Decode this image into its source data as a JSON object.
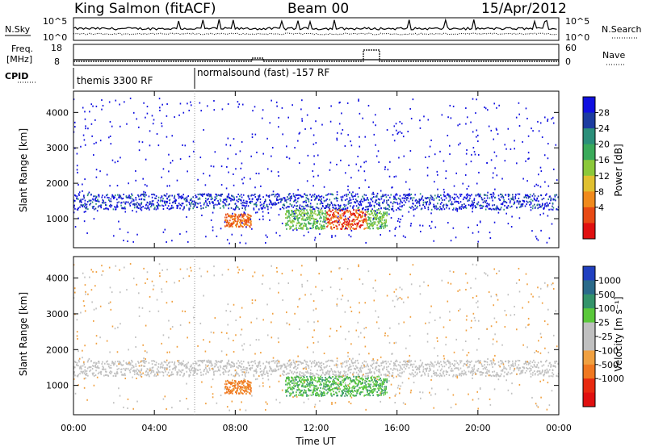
{
  "header": {
    "station": "King Salmon (fitACF)",
    "beam": "Beam 00",
    "date": "15/Apr/2012"
  },
  "top_panels": {
    "nsky_label": "N.Sky",
    "nsky_ticks": [
      "10^5",
      "10^0"
    ],
    "nsearch_label": "N.Search",
    "nsearch_ticks": [
      "10^5",
      "10^0"
    ],
    "freq_label_line1": "Freq.",
    "freq_label_line2": "[MHz]",
    "freq_ticks": [
      "18",
      "8"
    ],
    "nave_label": "Nave",
    "nave_ticks": [
      "60",
      "0"
    ],
    "cpid_label": "CPID",
    "cpid_segments": [
      "themis 3300 RF",
      "normalsound (fast) -157 RF"
    ]
  },
  "colors": {
    "power_scale": [
      "#1010e0",
      "#1c3ca0",
      "#2b8f7a",
      "#3aaa5a",
      "#8bc83a",
      "#e0c030",
      "#f08a1c",
      "#e84a14",
      "#e01010"
    ],
    "velocity_scale": [
      "#2040c0",
      "#2a6a8a",
      "#33936a",
      "#5ac83a",
      "#c0c0c0",
      "#c0c0c0",
      "#f0a040",
      "#f07820",
      "#e82a10",
      "#e01010"
    ]
  },
  "chart_data": [
    {
      "type": "heatmap",
      "title": "",
      "ylabel": "Slant Range [km]",
      "xlabel": "",
      "xlim": [
        0,
        24
      ],
      "ylim": [
        180,
        4600
      ],
      "y_ticks": [
        "4000",
        "3000",
        "2000",
        "1000"
      ],
      "colorbar": {
        "label": "Power [dB]",
        "ticks": [
          "28",
          "24",
          "20",
          "16",
          "12",
          "8",
          "4"
        ]
      },
      "features": [
        {
          "name": "main band",
          "x_range": [
            0,
            24
          ],
          "range_km": [
            1200,
            1700
          ],
          "level": "low"
        },
        {
          "name": "morning enhancement",
          "x_range": [
            7.5,
            8.8
          ],
          "range_km": [
            750,
            1150
          ],
          "level": "high"
        },
        {
          "name": "afternoon enhancement",
          "x_range": [
            12,
            15
          ],
          "range_km": [
            700,
            1200
          ],
          "level": "high"
        }
      ]
    },
    {
      "type": "heatmap",
      "title": "",
      "ylabel": "Slant Range [km]",
      "xlabel": "Time UT",
      "xlim": [
        0,
        24
      ],
      "ylim": [
        180,
        4600
      ],
      "y_ticks": [
        "4000",
        "3000",
        "2000",
        "1000"
      ],
      "x_ticks": [
        "00:00",
        "04:00",
        "08:00",
        "12:00",
        "16:00",
        "20:00",
        "00:00"
      ],
      "colorbar": {
        "label": "Velocity [m s⁻¹]",
        "ticks": [
          "1000",
          "500",
          "100",
          "25",
          "-25",
          "-100",
          "-500",
          "-1000"
        ]
      },
      "features": [
        {
          "name": "ground scatter band",
          "x_range": [
            0,
            24
          ],
          "range_km": [
            1200,
            1700
          ],
          "velocity": "near zero"
        },
        {
          "name": "receding flow",
          "x_range": [
            7.5,
            8.8
          ],
          "range_km": [
            750,
            1150
          ],
          "velocity": "-500"
        },
        {
          "name": "approaching flow",
          "x_range": [
            9.5,
            15.5
          ],
          "range_km": [
            700,
            1300
          ],
          "velocity": "100 to 500"
        }
      ]
    }
  ]
}
